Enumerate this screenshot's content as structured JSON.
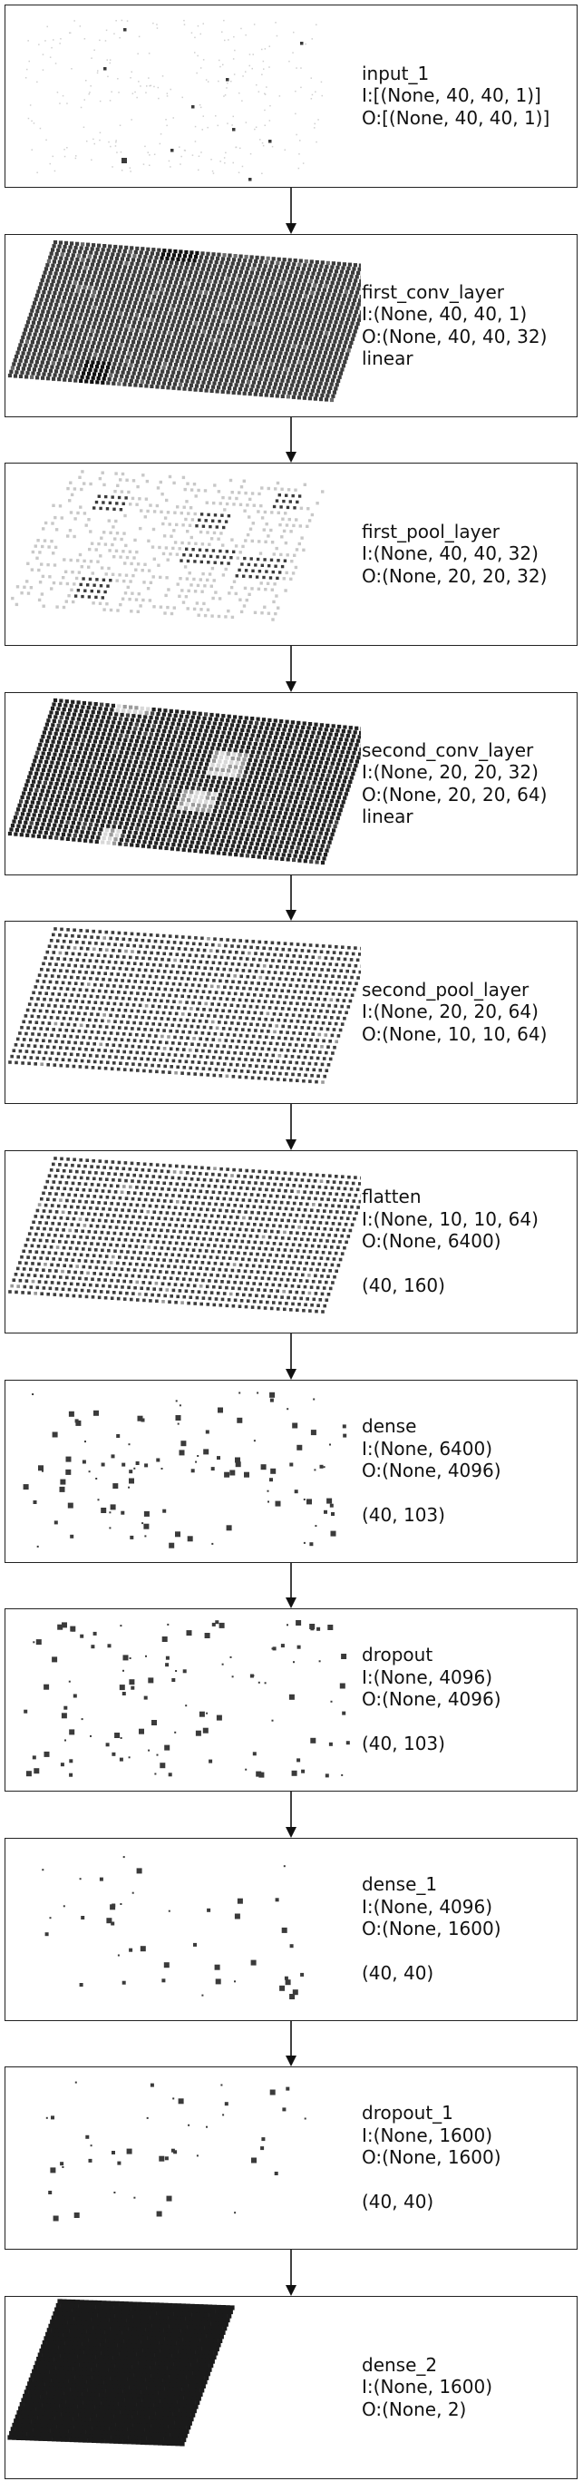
{
  "layers": [
    {
      "id": "input_1",
      "lines": [
        "input_1",
        "I:[(None, 40, 40, 1)]",
        "O:[(None, 40, 40, 1)]"
      ],
      "viz": "sparse-plane"
    },
    {
      "id": "first_conv_layer",
      "lines": [
        "first_conv_layer",
        "I:(None, 40, 40, 1)",
        "O:(None, 40, 40, 32)",
        "linear"
      ],
      "viz": "dense-plane"
    },
    {
      "id": "first_pool_layer",
      "lines": [
        "first_pool_layer",
        "I:(None, 40, 40, 32)",
        "O:(None, 20, 20, 32)"
      ],
      "viz": "light-plane"
    },
    {
      "id": "second_conv_layer",
      "lines": [
        "second_conv_layer",
        "I:(None, 20, 20, 32)",
        "O:(None, 20, 20, 64)",
        "linear"
      ],
      "viz": "dark-plane"
    },
    {
      "id": "second_pool_layer",
      "lines": [
        "second_pool_layer",
        "I:(None, 20, 20, 64)",
        "O:(None, 10, 10, 64)"
      ],
      "viz": "grid-plane"
    },
    {
      "id": "flatten",
      "lines": [
        "flatten",
        "I:(None, 10, 10, 64)",
        "O:(None, 6400)",
        "",
        "(40, 160)"
      ],
      "viz": "grid-plane"
    },
    {
      "id": "dense",
      "lines": [
        "dense",
        "I:(None, 6400)",
        "O:(None, 4096)",
        "",
        "(40, 103)"
      ],
      "viz": "scatter"
    },
    {
      "id": "dropout",
      "lines": [
        "dropout",
        "I:(None, 4096)",
        "O:(None, 4096)",
        "",
        "(40, 103)"
      ],
      "viz": "scatter"
    },
    {
      "id": "dense_1",
      "lines": [
        "dense_1",
        "I:(None, 4096)",
        "O:(None, 1600)",
        "",
        "(40, 40)"
      ],
      "viz": "sparse-scatter"
    },
    {
      "id": "dropout_1",
      "lines": [
        "dropout_1",
        "I:(None, 1600)",
        "O:(None, 1600)",
        "",
        "(40, 40)"
      ],
      "viz": "sparse-scatter"
    },
    {
      "id": "dense_2",
      "lines": [
        "dense_2",
        "I:(None, 1600)",
        "O:(None, 2)"
      ],
      "viz": "block"
    }
  ],
  "colors": {
    "border": "#222222",
    "text": "#111111",
    "mark": "#3a3a3a",
    "dark": "#1e1e1e",
    "light": "#bdbdbd"
  }
}
